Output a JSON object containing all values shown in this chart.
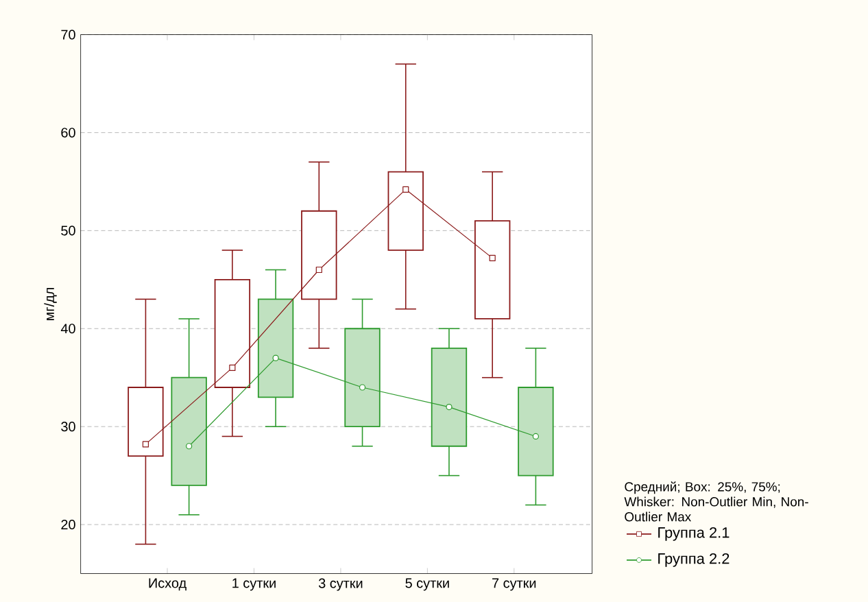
{
  "chart_data": {
    "type": "box",
    "ylabel": "мг/дл",
    "legend_title": "Средний; Box: 25%, 75%; Whisker: Non-Outlier Min, Non-Outlier Max",
    "categories": [
      "Исход",
      "1 сутки",
      "3 сутки",
      "5 сутки",
      "7 сутки"
    ],
    "ylim": [
      15,
      70
    ],
    "yticks": [
      20,
      30,
      40,
      50,
      60,
      70
    ],
    "grid": "y",
    "legend": "bottom right",
    "series": [
      {
        "color": "#8b1a1a",
        "boxes": [
          {
            "low": 18,
            "q1": 27,
            "q3": 34,
            "high": 43
          },
          {
            "low": 29,
            "q1": 34,
            "q3": 45,
            "high": 48
          },
          {
            "low": 38,
            "q1": 43,
            "q3": 52,
            "high": 57
          },
          {
            "low": 42,
            "q1": 48,
            "q3": 56,
            "high": 67
          },
          {
            "low": 35,
            "q1": 41,
            "q3": 51,
            "high": 56
          }
        ]
      },
      {
        "color": "#2e9b2e",
        "boxes": [
          {
            "low": 21,
            "q1": 24,
            "q3": 35,
            "high": 41
          },
          {
            "low": 30,
            "q1": 33,
            "q3": 43,
            "high": 46
          },
          {
            "low": 28,
            "q1": 30,
            "q3": 40,
            "high": 43
          },
          {
            "low": 25,
            "q1": 28,
            "q3": 38,
            "high": 40
          },
          {
            "low": 22,
            "q1": 25,
            "q3": 34,
            "high": 38
          }
        ]
      },
      {
        "type": "line",
        "name": "Группа 2.1",
        "color": "#8b1a1a",
        "marker": "square",
        "values": [
          28.2,
          36,
          46,
          54.2,
          47.2
        ]
      },
      {
        "type": "line",
        "name": "Группа 2.2",
        "color": "#2e9b2e",
        "marker": "circle",
        "values": [
          28,
          37,
          34,
          32,
          29
        ]
      }
    ]
  }
}
